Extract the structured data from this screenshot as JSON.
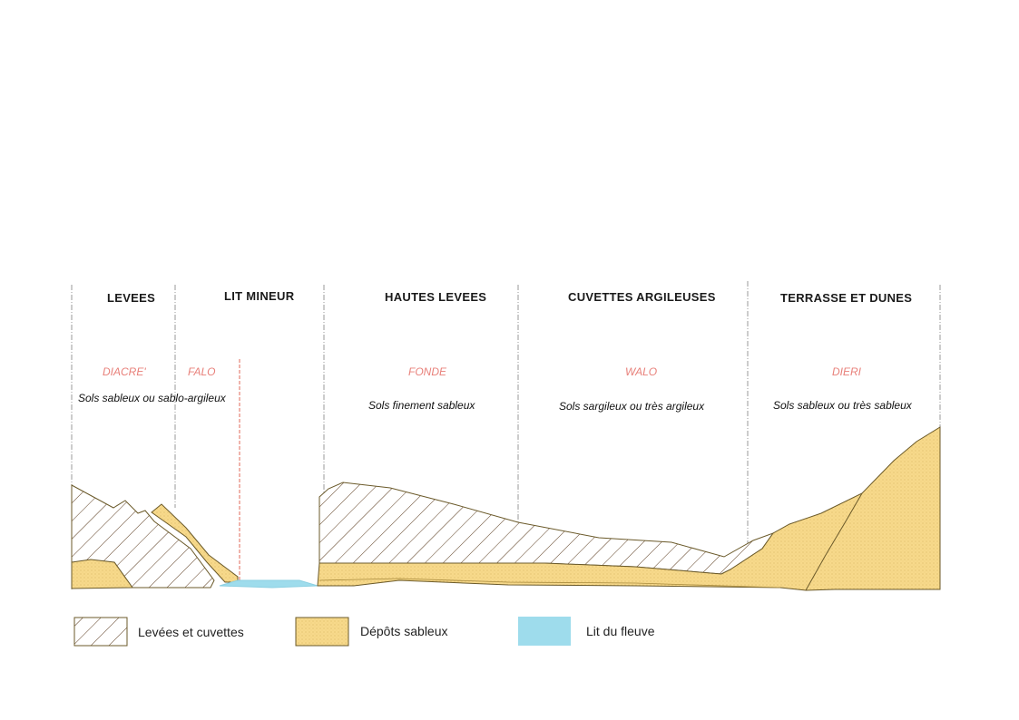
{
  "zones": [
    {
      "title": "LEVEES"
    },
    {
      "title": "LIT MINEUR"
    },
    {
      "title": "HAUTES LEVEES"
    },
    {
      "title": "CUVETTES ARGILEUSES"
    },
    {
      "title": "TERRASSE ET DUNES"
    }
  ],
  "local_names": [
    "DIACRE'",
    "FALO",
    "FONDE",
    "WALO",
    "DIERI"
  ],
  "soils": [
    "Sols sableux ou sablo-argileux",
    "Sols finement sableux",
    "Sols sargileux ou très argileux",
    "Sols sableux ou très sableux"
  ],
  "legend": [
    {
      "label": "Levées et cuvettes",
      "pattern": "hatch"
    },
    {
      "label": "Dépôts sableux",
      "color": "#f7d98b"
    },
    {
      "label": "Lit du fleuve",
      "color": "#9edcec"
    }
  ],
  "colors": {
    "sand": "#f7d98b",
    "sand_outline": "#6b5a2a",
    "water": "#9edcec",
    "hatch_line": "#5a3b1e",
    "local_name": "#e8807a",
    "divider": "#999999"
  }
}
